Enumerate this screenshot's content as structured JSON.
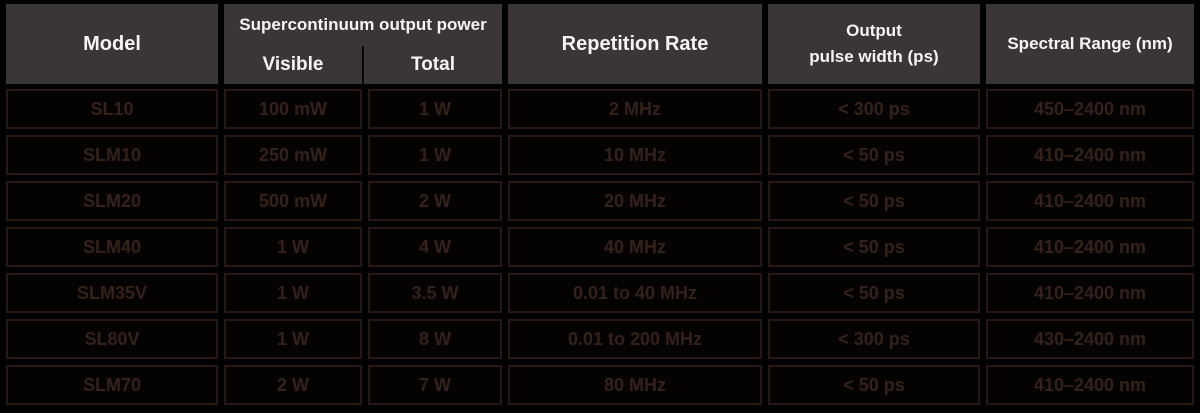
{
  "table": {
    "header": {
      "model": "Model",
      "group": "Supercontinuum output power",
      "visible": "Visible",
      "total": "Total",
      "repetition": "Repetition Rate",
      "output_line1": "Output",
      "output_line2": "pulse width (ps)",
      "spectral": "Spectral Range (nm)"
    },
    "rows": [
      {
        "model": "SL10",
        "visible": "100 mW",
        "total": "1 W",
        "rep": "2 MHz",
        "pulse": "< 300 ps",
        "range": "450–2400 nm"
      },
      {
        "model": "SLM10",
        "visible": "250 mW",
        "total": "1 W",
        "rep": "10 MHz",
        "pulse": "< 50 ps",
        "range": "410–2400 nm"
      },
      {
        "model": "SLM20",
        "visible": "500 mW",
        "total": "2 W",
        "rep": "20 MHz",
        "pulse": "< 50 ps",
        "range": "410–2400 nm"
      },
      {
        "model": "SLM40",
        "visible": "1 W",
        "total": "4 W",
        "rep": "40 MHz",
        "pulse": "< 50 ps",
        "range": "410–2400 nm"
      },
      {
        "model": "SLM35V",
        "visible": "1 W",
        "total": "3.5 W",
        "rep": "0.01 to 40 MHz",
        "pulse": "< 50 ps",
        "range": "410–2400 nm"
      },
      {
        "model": "SL80V",
        "visible": "1 W",
        "total": "8 W",
        "rep": "0.01 to 200 MHz",
        "pulse": "< 300 ps",
        "range": "430–2400 nm"
      },
      {
        "model": "SLM70",
        "visible": "2 W",
        "total": "7 W",
        "rep": "80 MHz",
        "pulse": "< 50 ps",
        "range": "410–2400 nm"
      }
    ],
    "colors": {
      "page_background": "#000000",
      "header_bg": "#3b3636",
      "header_text": "#f6f4f3",
      "cell_border": "#281811",
      "cell_text": "#35211a"
    }
  }
}
